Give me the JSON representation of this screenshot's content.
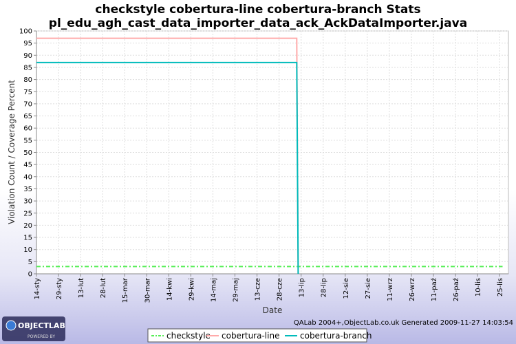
{
  "chart_data": {
    "type": "line",
    "title_line1": "checkstyle cobertura-line cobertura-branch  Stats",
    "title_line2": "pl_edu_agh_cast_data_importer_data_ack_AckDataImporter.java",
    "xlabel": "Date",
    "ylabel": "Violation Count / Coverage Percent",
    "ylim": [
      0,
      100
    ],
    "y_ticks": [
      0,
      5,
      10,
      15,
      20,
      25,
      30,
      35,
      40,
      45,
      50,
      55,
      60,
      65,
      70,
      75,
      80,
      85,
      90,
      95,
      100
    ],
    "x_ticks": [
      "14-sty",
      "29-sty",
      "13-lut",
      "28-lut",
      "15-mar",
      "30-mar",
      "14-kwi",
      "29-kwi",
      "14-maj",
      "29-maj",
      "13-cze",
      "28-cze",
      "13-lip",
      "28-lip",
      "12-sie",
      "27-sie",
      "11-wrz",
      "26-wrz",
      "11-paź",
      "26-paź",
      "10-lis",
      "25-lis"
    ],
    "x_range": [
      "2009-01-14",
      "2009-12-01"
    ],
    "grid": true,
    "legend_position": "bottom",
    "series": [
      {
        "name": "checkstyle",
        "color": "#55ee55",
        "style": "dash-dot",
        "points": [
          [
            "2009-01-14",
            3
          ],
          [
            "2009-11-27",
            3
          ]
        ]
      },
      {
        "name": "cobertura-line",
        "color": "#ffaaaa",
        "style": "solid",
        "points": [
          [
            "2009-01-14",
            97
          ],
          [
            "2009-07-10",
            97
          ],
          [
            "2009-07-11",
            0
          ]
        ]
      },
      {
        "name": "cobertura-branch",
        "color": "#00bbbb",
        "style": "solid",
        "points": [
          [
            "2009-01-14",
            87
          ],
          [
            "2009-07-10",
            87
          ],
          [
            "2009-07-11",
            0
          ]
        ]
      }
    ]
  },
  "footer": {
    "credit": "QALab 2004+,ObjectLab.co.uk Generated 2009-11-27 14:03:54",
    "logo_text": "OBJECTLAB",
    "logo_subtext": "POWERED BY"
  }
}
